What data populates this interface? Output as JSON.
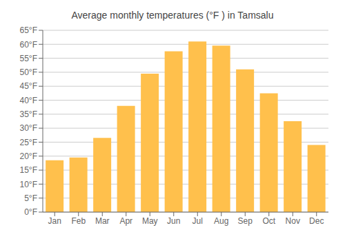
{
  "chart_data": {
    "type": "bar",
    "title": "Average monthly temperatures (°F ) in Tamsalu",
    "categories": [
      "Jan",
      "Feb",
      "Mar",
      "Apr",
      "May",
      "Jun",
      "Jul",
      "Aug",
      "Sep",
      "Oct",
      "Nov",
      "Dec"
    ],
    "values": [
      18.5,
      19.5,
      26.5,
      38.0,
      49.5,
      57.5,
      61.0,
      59.5,
      51.0,
      42.5,
      32.5,
      24.0
    ],
    "color": "#FFC04C",
    "ylim": [
      0,
      65
    ],
    "yticks": [
      {
        "value": 0,
        "label": "0°F"
      },
      {
        "value": 5,
        "label": "5°F"
      },
      {
        "value": 10,
        "label": "10°F"
      },
      {
        "value": 15,
        "label": "15°F"
      },
      {
        "value": 20,
        "label": "20°F"
      },
      {
        "value": 25,
        "label": "25°F"
      },
      {
        "value": 30,
        "label": "30°F"
      },
      {
        "value": 35,
        "label": "35°F"
      },
      {
        "value": 40,
        "label": "40°F"
      },
      {
        "value": 45,
        "label": "45°F"
      },
      {
        "value": 50,
        "label": "50°F"
      },
      {
        "value": 55,
        "label": "55°F"
      },
      {
        "value": 60,
        "label": "60°F"
      },
      {
        "value": 65,
        "label": "65°F"
      }
    ],
    "grid": true
  }
}
